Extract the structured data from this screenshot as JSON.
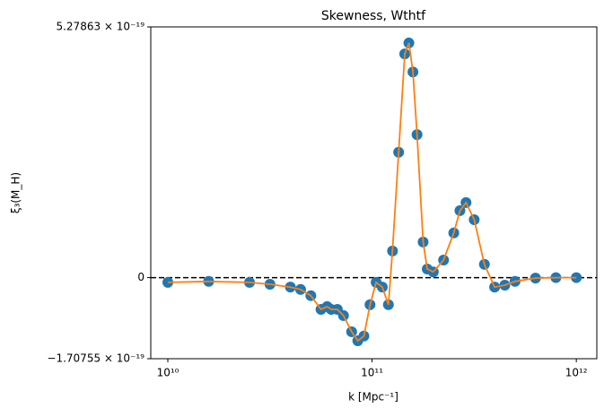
{
  "chart_data": {
    "type": "scatter",
    "title": "Skewness, Wthtf",
    "xlabel": "k [Mpc⁻¹]",
    "ylabel": "ξ₃(M_H)",
    "x": [
      10000000000.0,
      15850000000.0,
      25120000000.0,
      31620000000.0,
      39810000000.0,
      44670000000.0,
      50120000000.0,
      56230000000.0,
      60260000000.0,
      63100000000.0,
      67610000000.0,
      72440000000.0,
      79430000000.0,
      85110000000.0,
      91200000000.0,
      97720000000.0,
      104700000000.0,
      112200000000.0,
      120200000000.0,
      125900000000.0,
      134900000000.0,
      144500000000.0,
      151400000000.0,
      158500000000.0,
      166000000000.0,
      177800000000.0,
      186200000000.0,
      199500000000.0,
      223900000000.0,
      251200000000.0,
      269200000000.0,
      288400000000.0,
      316200000000.0,
      354800000000.0,
      398100000000.0,
      446700000000.0,
      501200000000.0,
      631000000000.0,
      794300000000.0,
      1000000000000.0
    ],
    "values": [
      -1e-20,
      -8e-21,
      -1e-20,
      -1.4e-20,
      -2e-20,
      -2.5e-20,
      -3.8e-20,
      -6.7e-20,
      -6.1e-20,
      -6.7e-20,
      -6.7e-20,
      -8e-20,
      -1.14e-19,
      -1.33e-19,
      -1.23e-19,
      -5.7e-20,
      -1e-20,
      -2e-20,
      -5.7e-20,
      5.6e-20,
      2.64e-19,
      4.71e-19,
      4.94e-19,
      4.33e-19,
      3.01e-19,
      7.5e-20,
      1.8e-20,
      1.2e-20,
      3.7e-20,
      9.4e-20,
      1.41e-19,
      1.58e-19,
      1.22e-19,
      2.8e-20,
      -2e-20,
      -1.6e-20,
      -8e-21,
      -1e-21,
      0,
      0
    ],
    "marker_color": "#1f77b4",
    "line_color": "#ff7f0e",
    "xscale": "log",
    "xlim": [
      8250000000.0,
      1260000000000.0
    ],
    "xticks": [
      {
        "value": 10000000000.0,
        "label": "10¹⁰"
      },
      {
        "value": 100000000000.0,
        "label": "10¹¹"
      },
      {
        "value": 1000000000000.0,
        "label": "10¹²"
      }
    ],
    "ylim": [
      -1.70755e-19,
      5.27863e-19
    ],
    "yticks": [
      {
        "value": -1.70755e-19,
        "label": "−1.70755 × 10⁻¹⁹"
      },
      {
        "value": 0,
        "label": "0"
      },
      {
        "value": 5.27863e-19,
        "label": "5.27863 × 10⁻¹⁹"
      }
    ],
    "hline": 0
  }
}
